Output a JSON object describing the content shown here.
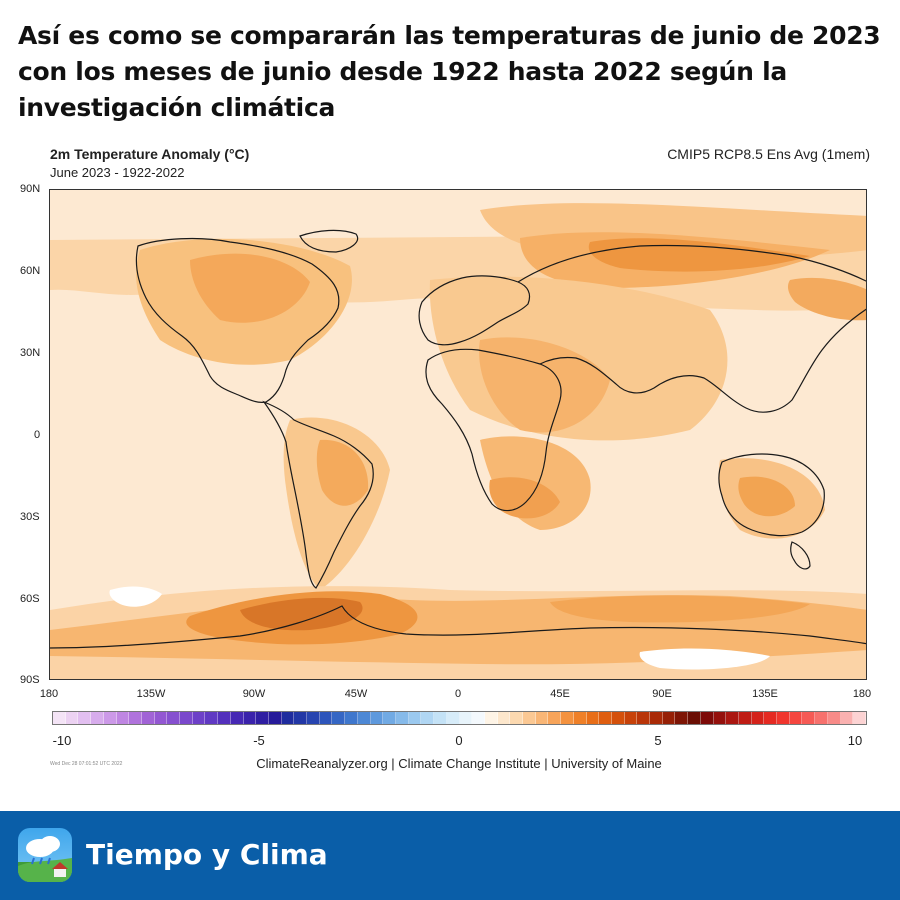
{
  "headline": "Así es como se compararán las temperaturas de junio de 2023 con los meses de junio desde 1922 hasta 2022 según la investigación climática",
  "map": {
    "title": "2m Temperature Anomaly (°C)",
    "subtitle": "June 2023 - 1922-2022",
    "model": "CMIP5 RCP8.5 Ens Avg (1mem)",
    "lat_labels": [
      "90N",
      "60N",
      "30N",
      "0",
      "30S",
      "60S",
      "90S"
    ],
    "lon_labels": [
      "180",
      "135W",
      "90W",
      "45W",
      "0",
      "45E",
      "90E",
      "135E",
      "180"
    ],
    "colorbar": {
      "ticks": [
        "-10",
        "-5",
        "0",
        "5",
        "10"
      ],
      "colors": [
        "#f4e4f6",
        "#ecd2f2",
        "#e2bff0",
        "#d7acec",
        "#cc99e8",
        "#bf86e2",
        "#b073dc",
        "#a163d6",
        "#9357d2",
        "#8650cf",
        "#7a48cc",
        "#6d40c8",
        "#6039c3",
        "#5330bc",
        "#4628b4",
        "#3a22ab",
        "#2f1ea2",
        "#261a9a",
        "#1f2c9e",
        "#2237a6",
        "#2744b0",
        "#2d55bb",
        "#3566c4",
        "#3f77cd",
        "#4d88d5",
        "#5e99dd",
        "#71aae4",
        "#86baea",
        "#9bc9ef",
        "#b0d6f3",
        "#c4e2f6",
        "#d7ecf9",
        "#e8f4fb",
        "#f4f9fd",
        "#fef4e6",
        "#fde7cc",
        "#fcd9b0",
        "#fbc893",
        "#f9b676",
        "#f7a45a",
        "#f4923f",
        "#ef8028",
        "#e86e18",
        "#df5e10",
        "#d4500b",
        "#c74209",
        "#b93508",
        "#a92a07",
        "#962006",
        "#7e1505",
        "#6a0e04",
        "#7d0a08",
        "#94100c",
        "#aa1610",
        "#bf1c14",
        "#d4221a",
        "#e52a22",
        "#f0352d",
        "#f5463f",
        "#f65a55",
        "#f7716d",
        "#f88b88",
        "#fab1b0",
        "#fcd3d3"
      ]
    },
    "timestamp": "Wed Dec 28 07:01:52 UTC 2022",
    "credit": "ClimateReanalyzer.org | Climate Change Institute | University of Maine"
  },
  "footer": {
    "brand": "Tiempo y Clima"
  },
  "colors": {
    "footer_bg": "#0a5ea8",
    "ocean_base": "#fde9d2",
    "anomaly_low": "#fbd5a8",
    "anomaly_mid": "#f7b066",
    "anomaly_high": "#ea8a2e",
    "anomaly_peak": "#c9651a"
  }
}
